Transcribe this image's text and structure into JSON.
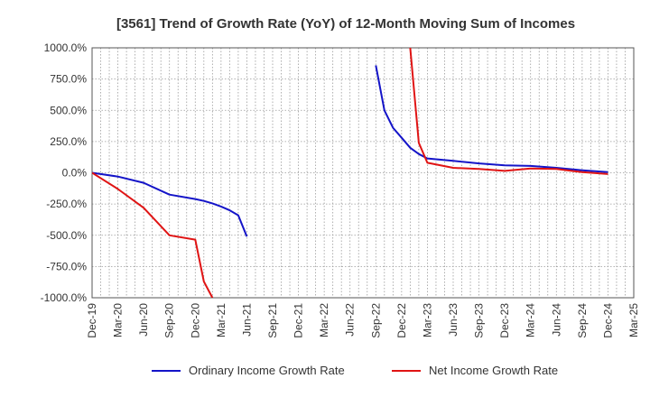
{
  "chart_data": {
    "type": "line",
    "title": "[3561]  Trend of Growth Rate (YoY) of 12-Month Moving Sum of Incomes",
    "xlabel": "",
    "ylabel": "",
    "ylim": [
      -1000,
      1000
    ],
    "y_ticks": [
      1000,
      750,
      500,
      250,
      0,
      -250,
      -500,
      -750,
      -1000
    ],
    "y_tick_labels": [
      "1000.0%",
      "750.0%",
      "500.0%",
      "250.0%",
      "0.0%",
      "-250.0%",
      "-500.0%",
      "-750.0%",
      "-1000.0%"
    ],
    "x_ticks": [
      "2019-12",
      "2020-03",
      "2020-06",
      "2020-09",
      "2020-12",
      "2021-03",
      "2021-06",
      "2021-09",
      "2021-12",
      "2022-03",
      "2022-06",
      "2022-09",
      "2022-12",
      "2023-03",
      "2023-06",
      "2023-09",
      "2023-12",
      "2024-03",
      "2024-06",
      "2024-09",
      "2024-12",
      "2025-03"
    ],
    "x_tick_labels": [
      "Dec-19",
      "Mar-20",
      "Jun-20",
      "Sep-20",
      "Dec-20",
      "Mar-21",
      "Jun-21",
      "Sep-21",
      "Dec-21",
      "Mar-22",
      "Jun-22",
      "Sep-22",
      "Dec-22",
      "Mar-23",
      "Jun-23",
      "Sep-23",
      "Dec-23",
      "Mar-24",
      "Jun-24",
      "Sep-24",
      "Dec-24",
      "Mar-25"
    ],
    "grid": true,
    "legend_position": "bottom",
    "series": [
      {
        "name": "Ordinary Income Growth Rate",
        "color": "#1414c8",
        "segments": [
          [
            [
              "2019-12",
              0
            ],
            [
              "2020-03",
              -30
            ],
            [
              "2020-06",
              -80
            ],
            [
              "2020-09",
              -175
            ],
            [
              "2020-12",
              -210
            ],
            [
              "2021-01",
              -225
            ],
            [
              "2021-02",
              -245
            ],
            [
              "2021-03",
              -270
            ],
            [
              "2021-04",
              -300
            ],
            [
              "2021-05",
              -340
            ],
            [
              "2021-06",
              -510
            ]
          ],
          [
            [
              "2022-09",
              860
            ],
            [
              "2022-10",
              500
            ],
            [
              "2022-11",
              360
            ],
            [
              "2022-12",
              280
            ],
            [
              "2023-01",
              200
            ],
            [
              "2023-02",
              150
            ],
            [
              "2023-03",
              115
            ],
            [
              "2023-06",
              95
            ],
            [
              "2023-09",
              75
            ],
            [
              "2023-12",
              60
            ],
            [
              "2024-03",
              55
            ],
            [
              "2024-06",
              40
            ],
            [
              "2024-09",
              20
            ],
            [
              "2024-12",
              5
            ]
          ]
        ]
      },
      {
        "name": "Net Income Growth Rate",
        "color": "#e01414",
        "segments": [
          [
            [
              "2019-12",
              0
            ],
            [
              "2020-03",
              -130
            ],
            [
              "2020-06",
              -280
            ],
            [
              "2020-09",
              -500
            ],
            [
              "2020-12",
              -535
            ],
            [
              "2021-01",
              -870
            ],
            [
              "2021-02",
              -1000
            ]
          ],
          [
            [
              "2023-01",
              1000
            ],
            [
              "2023-02",
              240
            ],
            [
              "2023-03",
              80
            ],
            [
              "2023-06",
              40
            ],
            [
              "2023-09",
              30
            ],
            [
              "2023-12",
              15
            ],
            [
              "2024-03",
              35
            ],
            [
              "2024-06",
              30
            ],
            [
              "2024-09",
              5
            ],
            [
              "2024-12",
              -10
            ]
          ]
        ]
      }
    ]
  }
}
